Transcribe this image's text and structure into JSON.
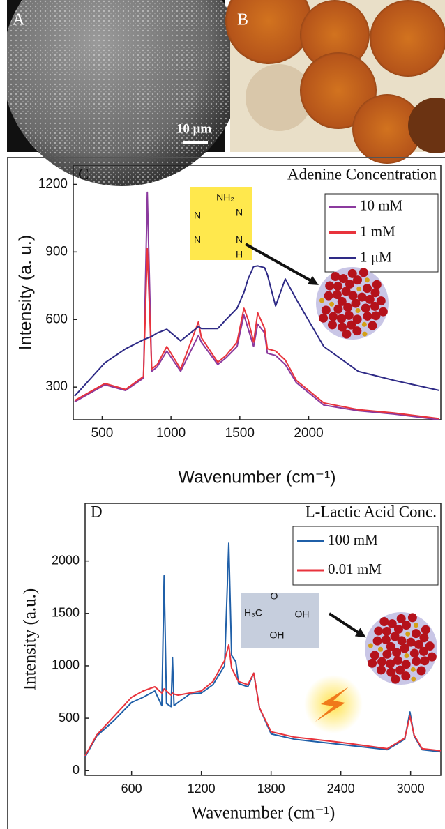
{
  "panels": {
    "a": {
      "label": "A",
      "scale_bar": "10 μm"
    },
    "b": {
      "label": "B"
    }
  },
  "chart_data": [
    {
      "type": "line",
      "panel_label": "C",
      "title": "Adenine Concentration",
      "xlabel": "Wavenumber (cm⁻¹)",
      "ylabel": "Intensity (a. u.)",
      "x": [
        300,
        520,
        670,
        800,
        828,
        860,
        900,
        970,
        1070,
        1200,
        1220,
        1340,
        1400,
        1480,
        1530,
        1560,
        1600,
        1630,
        1680,
        1700,
        1760,
        1830,
        1910,
        2110,
        2360,
        2620,
        2950
      ],
      "series": [
        {
          "name": "10 mM",
          "color": "#8b3a9e",
          "values": [
            235,
            310,
            285,
            340,
            1165,
            370,
            390,
            460,
            370,
            530,
            500,
            400,
            430,
            480,
            620,
            560,
            480,
            580,
            540,
            450,
            440,
            400,
            320,
            220,
            195,
            180,
            155
          ]
        },
        {
          "name": "1 mM",
          "color": "#e8333c",
          "values": [
            240,
            316,
            290,
            347,
            915,
            380,
            400,
            480,
            380,
            590,
            520,
            410,
            440,
            500,
            650,
            600,
            500,
            630,
            560,
            470,
            460,
            420,
            330,
            230,
            200,
            185,
            160
          ]
        },
        {
          "name": "1 μM",
          "color": "#2e2a86",
          "values": [
            260,
            408,
            470,
            510,
            517,
            525,
            540,
            557,
            505,
            569,
            560,
            560,
            600,
            650,
            720,
            780,
            835,
            838,
            830,
            800,
            660,
            780,
            690,
            480,
            370,
            330,
            285
          ]
        }
      ],
      "xlim": [
        290,
        2960
      ],
      "xticks": [
        500,
        1000,
        1500,
        2000
      ],
      "ylim": [
        155,
        1285
      ],
      "yticks": [
        300,
        600,
        900,
        1200
      ],
      "legend": "upper right",
      "structure_labels": [
        "NH₂",
        "N",
        "N",
        "N",
        "N",
        "H"
      ]
    },
    {
      "type": "line",
      "panel_label": "D",
      "title": "L-Lactic Acid Conc.",
      "xlabel": "Wavenumber (cm⁻¹)",
      "ylabel": "Intensity (a.u.)",
      "x": [
        200,
        300,
        450,
        600,
        700,
        800,
        860,
        880,
        900,
        940,
        952,
        965,
        1000,
        1100,
        1200,
        1300,
        1400,
        1436,
        1460,
        1496,
        1520,
        1600,
        1651,
        1700,
        1800,
        2000,
        2400,
        2800,
        2950,
        2994,
        3030,
        3100,
        3260
      ],
      "series": [
        {
          "name": "100 mM",
          "color": "#1f5fa8",
          "values": [
            130,
            330,
            480,
            650,
            700,
            760,
            620,
            1860,
            640,
            610,
            1080,
            620,
            650,
            730,
            740,
            820,
            1000,
            2170,
            1100,
            1040,
            830,
            800,
            930,
            600,
            350,
            300,
            250,
            200,
            300,
            560,
            330,
            200,
            180
          ]
        },
        {
          "name": "0.01 mM",
          "color": "#e8333c",
          "values": [
            140,
            340,
            520,
            700,
            760,
            800,
            740,
            780,
            760,
            720,
            740,
            730,
            720,
            740,
            760,
            850,
            1050,
            1200,
            980,
            900,
            850,
            820,
            930,
            600,
            370,
            320,
            270,
            210,
            310,
            520,
            340,
            210,
            190
          ]
        }
      ],
      "xlim": [
        200,
        3260
      ],
      "xticks": [
        600,
        1200,
        1800,
        2400,
        3000
      ],
      "ylim": [
        -45,
        2550
      ],
      "yticks": [
        0,
        500,
        1000,
        1500,
        2000
      ],
      "legend": "upper right",
      "structure_labels": [
        "H₃C",
        "O",
        "OH",
        "OH"
      ]
    }
  ]
}
